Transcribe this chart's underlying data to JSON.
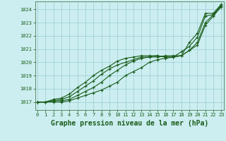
{
  "title": "Graphe pression niveau de la mer (hPa)",
  "bg_color": "#cceef0",
  "grid_color": "#99ccd4",
  "line_color": "#1a5c1a",
  "x_ticks": [
    0,
    1,
    2,
    3,
    4,
    5,
    6,
    7,
    8,
    9,
    10,
    11,
    12,
    13,
    14,
    15,
    16,
    17,
    18,
    19,
    20,
    21,
    22,
    23
  ],
  "y_ticks": [
    1017,
    1018,
    1019,
    1020,
    1021,
    1022,
    1023,
    1024
  ],
  "ylim": [
    1016.4,
    1024.6
  ],
  "xlim": [
    -0.3,
    23.3
  ],
  "series": [
    [
      1017.0,
      1017.0,
      1017.0,
      1017.0,
      1017.1,
      1017.3,
      1017.5,
      1017.7,
      1017.9,
      1018.2,
      1018.5,
      1019.0,
      1019.3,
      1019.6,
      1020.0,
      1020.2,
      1020.3,
      1020.4,
      1020.5,
      1020.9,
      1021.3,
      1022.8,
      1023.5,
      1024.2
    ],
    [
      1017.0,
      1017.0,
      1017.1,
      1017.1,
      1017.2,
      1017.5,
      1017.8,
      1018.1,
      1018.5,
      1019.0,
      1019.4,
      1019.8,
      1020.1,
      1020.3,
      1020.4,
      1020.4,
      1020.5,
      1020.5,
      1020.5,
      1020.9,
      1021.5,
      1023.0,
      1023.6,
      1024.3
    ],
    [
      1017.0,
      1017.0,
      1017.1,
      1017.2,
      1017.4,
      1017.8,
      1018.2,
      1018.6,
      1019.1,
      1019.5,
      1019.8,
      1020.0,
      1020.2,
      1020.4,
      1020.4,
      1020.5,
      1020.4,
      1020.4,
      1020.8,
      1021.2,
      1021.9,
      1023.5,
      1023.6,
      1024.3
    ],
    [
      1017.0,
      1017.0,
      1017.2,
      1017.3,
      1017.6,
      1018.1,
      1018.5,
      1019.0,
      1019.4,
      1019.7,
      1020.1,
      1020.3,
      1020.4,
      1020.5,
      1020.5,
      1020.5,
      1020.4,
      1020.4,
      1020.5,
      1021.5,
      1022.2,
      1023.7,
      1023.7,
      1024.4
    ]
  ],
  "marker": "+",
  "markersize": 3.5,
  "linewidth": 0.8,
  "title_fontsize": 7,
  "tick_fontsize": 5.0,
  "spine_color": "#336633"
}
